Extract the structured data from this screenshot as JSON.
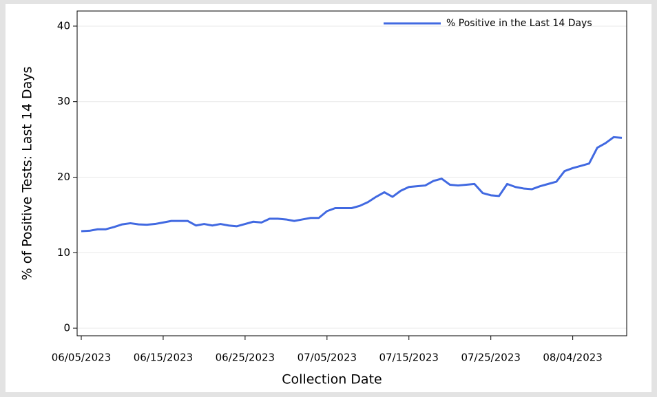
{
  "chart_data": {
    "type": "line",
    "x_label": "Collection Date",
    "y_label": "% of Positive Tests: Last 14 Days",
    "x": [
      "06/05/2023",
      "06/06/2023",
      "06/07/2023",
      "06/08/2023",
      "06/09/2023",
      "06/10/2023",
      "06/11/2023",
      "06/12/2023",
      "06/13/2023",
      "06/14/2023",
      "06/15/2023",
      "06/16/2023",
      "06/17/2023",
      "06/18/2023",
      "06/19/2023",
      "06/20/2023",
      "06/21/2023",
      "06/22/2023",
      "06/23/2023",
      "06/24/2023",
      "06/25/2023",
      "06/26/2023",
      "06/27/2023",
      "06/28/2023",
      "06/29/2023",
      "06/30/2023",
      "07/01/2023",
      "07/02/2023",
      "07/03/2023",
      "07/04/2023",
      "07/05/2023",
      "07/06/2023",
      "07/07/2023",
      "07/08/2023",
      "07/09/2023",
      "07/10/2023",
      "07/11/2023",
      "07/12/2023",
      "07/13/2023",
      "07/14/2023",
      "07/15/2023",
      "07/16/2023",
      "07/17/2023",
      "07/18/2023",
      "07/19/2023",
      "07/20/2023",
      "07/21/2023",
      "07/22/2023",
      "07/23/2023",
      "07/24/2023",
      "07/25/2023",
      "07/26/2023",
      "07/27/2023",
      "07/28/2023",
      "07/29/2023",
      "07/30/2023",
      "07/31/2023",
      "08/01/2023",
      "08/02/2023",
      "08/03/2023",
      "08/04/2023",
      "08/05/2023",
      "08/06/2023",
      "08/07/2023",
      "08/08/2023",
      "08/09/2023",
      "08/10/2023"
    ],
    "series": [
      {
        "name": "% Positive in the Last 14 Days",
        "color": "#4169e1",
        "values": [
          12.85,
          12.9,
          13.1,
          13.1,
          13.4,
          13.75,
          13.9,
          13.75,
          13.7,
          13.8,
          14.0,
          14.2,
          14.2,
          14.2,
          13.6,
          13.8,
          13.6,
          13.8,
          13.6,
          13.5,
          13.8,
          14.1,
          14.0,
          14.5,
          14.5,
          14.4,
          14.2,
          14.4,
          14.6,
          14.6,
          15.5,
          15.9,
          15.9,
          15.9,
          16.2,
          16.7,
          17.4,
          18.0,
          17.4,
          18.2,
          18.7,
          18.8,
          18.9,
          19.5,
          19.8,
          19.0,
          18.9,
          19.0,
          19.1,
          17.9,
          17.6,
          17.5,
          19.1,
          18.7,
          18.5,
          18.4,
          18.8,
          19.1,
          19.4,
          20.8,
          21.2,
          21.5,
          21.8,
          23.9,
          24.5,
          25.3,
          25.2
        ]
      }
    ],
    "xlim": [
      "06/05/2023",
      "08/10/2023"
    ],
    "xticks": [
      "06/05/2023",
      "06/15/2023",
      "06/25/2023",
      "07/05/2023",
      "07/15/2023",
      "07/25/2023",
      "08/04/2023"
    ],
    "ylim": [
      -1,
      42
    ],
    "yticks": [
      0,
      10,
      20,
      30,
      40
    ],
    "grid": true,
    "legend": "top-right"
  }
}
